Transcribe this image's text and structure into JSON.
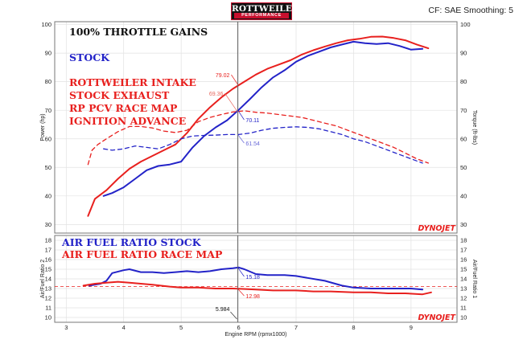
{
  "header": {
    "logo_line1": "ROTTWEILER",
    "logo_line2": "PERFORMANCE",
    "cf_info": "CF: SAE Smoothing: 5"
  },
  "watermark": "DYNOJET",
  "colors": {
    "red": "#e8201e",
    "blue": "#2323c8",
    "gray": "#555555"
  },
  "cursor": {
    "rpm": 5.984,
    "label": "5.984"
  },
  "xaxis": {
    "title": "Engine RPM (rpmx1000)",
    "ticks": [
      "3",
      "4",
      "5",
      "6",
      "7",
      "8",
      "9"
    ],
    "xlim": [
      2.8,
      9.8
    ]
  },
  "chart_data": [
    {
      "type": "line",
      "title": "100% THROTTLE GAINS",
      "ylabel": "Power (hp)",
      "ylabel_right": "Torque (ft-lbs)",
      "ylim": [
        27,
        101
      ],
      "yticks": [
        "30",
        "40",
        "50",
        "60",
        "70",
        "80",
        "90",
        "100"
      ],
      "grid": true,
      "annotations": [
        "STOCK",
        "ROTTWEILER INTAKE",
        "STOCK EXHAUST",
        "RP PCV RACE MAP",
        "IGNITION ADVANCE"
      ],
      "cursor_values": [
        "79.02",
        "69.36",
        "70.11",
        "61.54"
      ],
      "series": [
        {
          "name": "STOCK",
          "color": "#2323c8",
          "style": "solid",
          "x": [
            3.65,
            3.8,
            4.0,
            4.2,
            4.4,
            4.6,
            4.8,
            5.0,
            5.2,
            5.4,
            5.6,
            5.8,
            6.0,
            6.2,
            6.4,
            6.6,
            6.8,
            7.0,
            7.2,
            7.4,
            7.6,
            7.8,
            8.0,
            8.2,
            8.4,
            8.6,
            8.8,
            9.0,
            9.2
          ],
          "y": [
            40,
            41,
            43,
            46,
            49,
            50.5,
            51,
            52,
            57,
            61,
            64,
            66.5,
            70.1,
            74,
            78,
            81.5,
            84,
            87,
            89,
            90.5,
            92,
            93,
            94,
            93.5,
            93.2,
            93.5,
            92.5,
            91.2,
            91.5
          ]
        },
        {
          "name": "ROTTWEILER INTAKE",
          "color": "#e8201e",
          "style": "solid",
          "x": [
            3.38,
            3.5,
            3.7,
            3.9,
            4.1,
            4.3,
            4.5,
            4.7,
            4.9,
            5.1,
            5.3,
            5.5,
            5.7,
            5.9,
            6.1,
            6.3,
            6.5,
            6.7,
            6.9,
            7.1,
            7.3,
            7.5,
            7.7,
            7.9,
            8.1,
            8.3,
            8.5,
            8.7,
            8.9,
            9.1,
            9.3
          ],
          "y": [
            33,
            39,
            42,
            46,
            49.5,
            52,
            54,
            56,
            58,
            62,
            67,
            71,
            74.5,
            77.5,
            80,
            82.5,
            84.5,
            86,
            87.5,
            89.5,
            91,
            92.3,
            93.5,
            94.5,
            95,
            95.7,
            95.8,
            95.3,
            94.5,
            93,
            91.7
          ]
        },
        {
          "name": "STOCK torque",
          "color": "#2323c8",
          "style": "dashed",
          "x": [
            3.65,
            3.8,
            4.0,
            4.2,
            4.4,
            4.6,
            4.8,
            5.0,
            5.2,
            5.4,
            5.6,
            5.8,
            6.0,
            6.2,
            6.4,
            6.6,
            6.8,
            7.0,
            7.2,
            7.4,
            7.6,
            7.8,
            8.0,
            8.2,
            8.4,
            8.6,
            8.8,
            9.0,
            9.2
          ],
          "y": [
            56.5,
            56,
            56.5,
            57.5,
            57,
            56.5,
            58,
            60,
            61,
            61.2,
            61.3,
            61.5,
            61.5,
            62,
            63,
            63.7,
            64,
            64.2,
            64,
            63.5,
            62.5,
            61.5,
            60,
            59,
            57.5,
            56,
            54.5,
            53,
            51.5
          ]
        },
        {
          "name": "ROTTWEILER INTAKE torque",
          "color": "#e8201e",
          "style": "dashed",
          "x": [
            3.38,
            3.45,
            3.55,
            3.7,
            3.9,
            4.1,
            4.3,
            4.5,
            4.7,
            4.9,
            5.1,
            5.3,
            5.5,
            5.7,
            5.9,
            6.1,
            6.3,
            6.5,
            6.7,
            6.9,
            7.1,
            7.3,
            7.5,
            7.7,
            7.9,
            8.1,
            8.3,
            8.5,
            8.7,
            8.9,
            9.1,
            9.3
          ],
          "y": [
            51,
            56,
            58,
            60,
            62.5,
            64.3,
            64.3,
            63.8,
            62.7,
            62.2,
            63,
            66,
            67.5,
            68.5,
            69.4,
            69.8,
            69.3,
            69,
            68.5,
            68,
            67.5,
            66.5,
            65.5,
            64.5,
            63,
            61.5,
            60,
            58.5,
            57,
            55,
            53,
            51.5
          ]
        }
      ]
    },
    {
      "type": "line",
      "title": "",
      "ylabel": "Air/Fuel Ratio 2",
      "ylabel_right": "Air/Fuel Ratio 1",
      "ylim": [
        9.5,
        18.5
      ],
      "yticks": [
        "10",
        "11",
        "12",
        "13",
        "14",
        "15",
        "16",
        "17",
        "18"
      ],
      "grid": true,
      "reference_line": 13.2,
      "annotations": [
        "AIR FUEL RATIO STOCK",
        "AIR FUEL RATIO RACE MAP"
      ],
      "cursor_values": [
        "15.18",
        "12.98"
      ],
      "series": [
        {
          "name": "AIR FUEL RATIO STOCK",
          "color": "#2323c8",
          "style": "solid",
          "x": [
            3.4,
            3.6,
            3.7,
            3.8,
            4.0,
            4.1,
            4.3,
            4.5,
            4.7,
            4.9,
            5.1,
            5.3,
            5.5,
            5.7,
            5.9,
            6.0,
            6.1,
            6.3,
            6.5,
            6.8,
            7.0,
            7.2,
            7.5,
            7.8,
            8.0,
            8.3,
            8.6,
            8.8,
            9.0,
            9.2
          ],
          "y": [
            13.3,
            13.5,
            13.8,
            14.6,
            14.9,
            15.0,
            14.7,
            14.7,
            14.6,
            14.7,
            14.8,
            14.7,
            14.8,
            15.0,
            15.1,
            15.18,
            15.0,
            14.5,
            14.4,
            14.4,
            14.3,
            14.1,
            13.8,
            13.3,
            13.1,
            13.0,
            13.0,
            13.0,
            13.0,
            12.9
          ]
        },
        {
          "name": "AIR FUEL RATIO RACE MAP",
          "color": "#e8201e",
          "style": "solid",
          "x": [
            3.3,
            3.5,
            3.7,
            3.9,
            4.1,
            4.3,
            4.5,
            4.8,
            5.0,
            5.3,
            5.6,
            5.9,
            6.0,
            6.3,
            6.6,
            7.0,
            7.3,
            7.6,
            8.0,
            8.3,
            8.6,
            8.9,
            9.2,
            9.35
          ],
          "y": [
            13.3,
            13.5,
            13.6,
            13.7,
            13.6,
            13.5,
            13.4,
            13.2,
            13.1,
            13.1,
            13.0,
            13.0,
            12.98,
            12.9,
            12.8,
            12.8,
            12.7,
            12.7,
            12.6,
            12.6,
            12.5,
            12.5,
            12.4,
            12.6
          ]
        }
      ]
    }
  ]
}
